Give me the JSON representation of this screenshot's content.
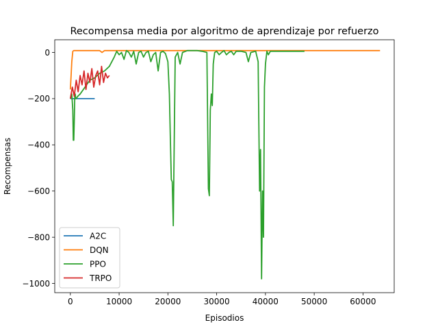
{
  "chart_data": {
    "type": "line",
    "title": "Recompensa media por algoritmo de aprendizaje por refuerzo",
    "xlabel": "Episodios",
    "ylabel": "Recompensas",
    "xlim": [
      -3200,
      66400
    ],
    "ylim": [
      -1040,
      55
    ],
    "xticks": [
      0,
      10000,
      20000,
      30000,
      40000,
      50000,
      60000
    ],
    "xtick_labels": [
      "0",
      "10000",
      "20000",
      "30000",
      "40000",
      "50000",
      "60000"
    ],
    "yticks": [
      0,
      -200,
      -400,
      -600,
      -800,
      -1000
    ],
    "ytick_labels": [
      "0",
      "−200",
      "−400",
      "−600",
      "−800",
      "−1000"
    ],
    "grid": false,
    "legend_position": "lower-left",
    "series": [
      {
        "name": "A2C",
        "color": "#1f77b4",
        "x": [
          0,
          500,
          5000
        ],
        "y": [
          -200,
          -200,
          -200
        ]
      },
      {
        "name": "DQN",
        "color": "#ff7f0e",
        "x": [
          0,
          150,
          300,
          500,
          700,
          1000,
          2000,
          4000,
          6000,
          6500,
          7000,
          8000,
          12000,
          16000,
          20000,
          24000,
          28000,
          32000,
          36000,
          40000,
          44000,
          48000,
          52000,
          56000,
          60000,
          63500
        ],
        "y": [
          -160,
          -100,
          -40,
          5,
          8,
          8,
          8,
          8,
          8,
          0,
          8,
          8,
          8,
          8,
          8,
          8,
          8,
          8,
          8,
          8,
          8,
          8,
          8,
          8,
          8,
          8
        ]
      },
      {
        "name": "PPO",
        "color": "#2ca02c",
        "x": [
          0,
          300,
          500,
          600,
          700,
          800,
          900,
          1000,
          1100,
          1200,
          1500,
          2000,
          3000,
          4000,
          5000,
          6000,
          7000,
          8000,
          9000,
          9500,
          10000,
          10500,
          11000,
          11500,
          12000,
          12500,
          13000,
          13500,
          14000,
          14500,
          15000,
          15500,
          16000,
          16500,
          17000,
          17500,
          18000,
          18500,
          19000,
          19500,
          20000,
          20300,
          20500,
          20700,
          20900,
          21100,
          21300,
          21500,
          22000,
          22500,
          23000,
          24000,
          25000,
          26000,
          27000,
          28000,
          28300,
          28500,
          28700,
          28900,
          29100,
          29300,
          29600,
          30000,
          30500,
          31000,
          31500,
          32000,
          32500,
          33000,
          33500,
          34000,
          35000,
          36000,
          36500,
          37000,
          38000,
          38500,
          38800,
          39000,
          39200,
          39400,
          39600,
          39800,
          40000,
          40300,
          40600,
          41000,
          42000,
          43000,
          44000,
          45000,
          46000,
          47000,
          48000
        ],
        "y": [
          -200,
          -180,
          -250,
          -380,
          -380,
          -300,
          -200,
          -180,
          -200,
          -200,
          -190,
          -180,
          -150,
          -120,
          -110,
          -90,
          -80,
          -60,
          -20,
          5,
          -10,
          0,
          -30,
          8,
          0,
          -20,
          5,
          -50,
          0,
          5,
          -20,
          0,
          5,
          -40,
          -10,
          0,
          -80,
          0,
          5,
          -5,
          -40,
          -180,
          -370,
          -550,
          -560,
          -750,
          -380,
          -20,
          0,
          -50,
          0,
          8,
          8,
          8,
          5,
          0,
          -590,
          -620,
          -250,
          -180,
          -230,
          -50,
          0,
          5,
          -10,
          0,
          8,
          -10,
          0,
          5,
          -10,
          5,
          5,
          0,
          -40,
          0,
          5,
          -40,
          -600,
          -420,
          -980,
          -600,
          -800,
          -150,
          -50,
          5,
          -10,
          5,
          5,
          5,
          5,
          5,
          5,
          5,
          5
        ]
      },
      {
        "name": "TRPO",
        "color": "#d62728",
        "x": [
          0,
          400,
          800,
          1200,
          1600,
          2000,
          2400,
          2800,
          3200,
          3600,
          4000,
          4400,
          4800,
          5200,
          5600,
          6000,
          6400,
          6800,
          7200,
          7600,
          8000
        ],
        "y": [
          -200,
          -150,
          -190,
          -120,
          -170,
          -100,
          -140,
          -80,
          -160,
          -90,
          -130,
          -70,
          -150,
          -100,
          -80,
          -140,
          -60,
          -130,
          -90,
          -110,
          -100
        ]
      }
    ]
  }
}
